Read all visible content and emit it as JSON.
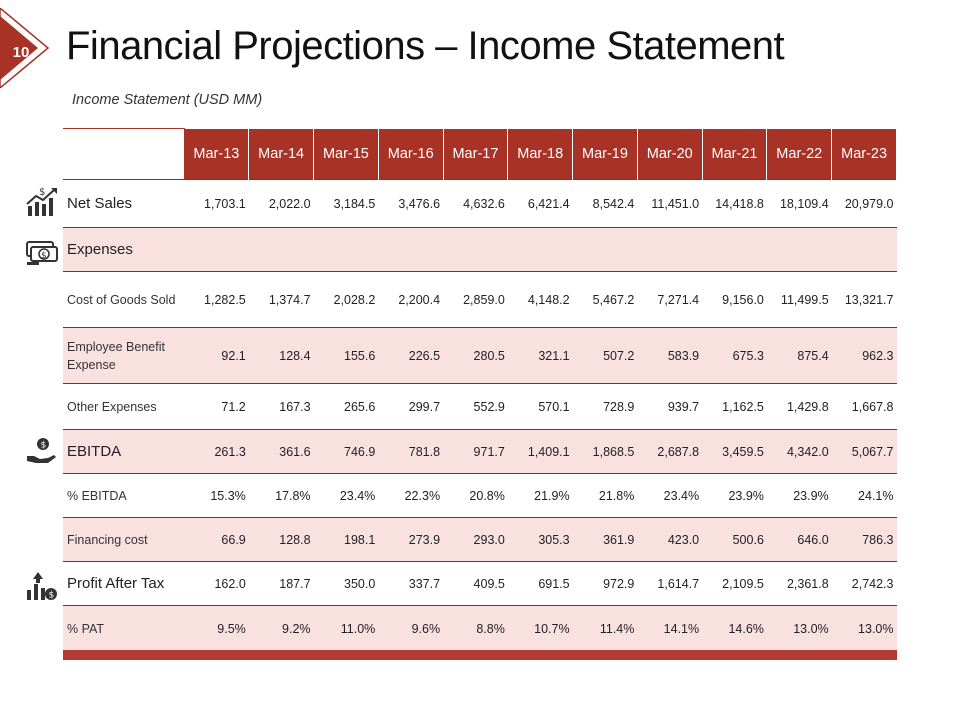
{
  "slide": {
    "number": "10",
    "title": "Financial Projections – Income Statement",
    "subtitle": "Income Statement (USD MM)"
  },
  "colors": {
    "accent": "#a93226",
    "row_shade": "#f9e1e0",
    "footer_bar": "#b23a32"
  },
  "table": {
    "columns": [
      "Mar-13",
      "Mar-14",
      "Mar-15",
      "Mar-16",
      "Mar-17",
      "Mar-18",
      "Mar-19",
      "Mar-20",
      "Mar-21",
      "Mar-22",
      "Mar-23"
    ],
    "rows": [
      {
        "label": "Net Sales",
        "icon": "sales-growth-icon",
        "values": [
          "1,703.1",
          "2,022.0",
          "3,184.5",
          "3,476.6",
          "4,632.6",
          "6,421.4",
          "8,542.4",
          "11,451.0",
          "14,418.8",
          "18,109.4",
          "20,979.0"
        ]
      },
      {
        "label": "Expenses",
        "icon": "money-stack-icon",
        "values": [
          "",
          "",
          "",
          "",
          "",
          "",
          "",
          "",
          "",
          "",
          ""
        ]
      },
      {
        "label": "Cost of Goods Sold",
        "values": [
          "1,282.5",
          "1,374.7",
          "2,028.2",
          "2,200.4",
          "2,859.0",
          "4,148.2",
          "5,467.2",
          "7,271.4",
          "9,156.0",
          "11,499.5",
          "13,321.7"
        ]
      },
      {
        "label": "Employee Benefit Expense",
        "values": [
          "92.1",
          "128.4",
          "155.6",
          "226.5",
          "280.5",
          "321.1",
          "507.2",
          "583.9",
          "675.3",
          "875.4",
          "962.3"
        ]
      },
      {
        "label": "Other Expenses",
        "values": [
          "71.2",
          "167.3",
          "265.6",
          "299.7",
          "552.9",
          "570.1",
          "728.9",
          "939.7",
          "1,162.5",
          "1,429.8",
          "1,667.8"
        ]
      },
      {
        "label": "EBITDA",
        "icon": "hand-coin-icon",
        "values": [
          "261.3",
          "361.6",
          "746.9",
          "781.8",
          "971.7",
          "1,409.1",
          "1,868.5",
          "2,687.8",
          "3,459.5",
          "4,342.0",
          "5,067.7"
        ]
      },
      {
        "label": "% EBITDA",
        "values": [
          "15.3%",
          "17.8%",
          "23.4%",
          "22.3%",
          "20.8%",
          "21.9%",
          "21.8%",
          "23.4%",
          "23.9%",
          "23.9%",
          "24.1%"
        ]
      },
      {
        "label": "Financing cost",
        "values": [
          "66.9",
          "128.8",
          "198.1",
          "273.9",
          "293.0",
          "305.3",
          "361.9",
          "423.0",
          "500.6",
          "646.0",
          "786.3"
        ]
      },
      {
        "label": "Profit After Tax",
        "icon": "profit-chart-icon",
        "values": [
          "162.0",
          "187.7",
          "350.0",
          "337.7",
          "409.5",
          "691.5",
          "972.9",
          "1,614.7",
          "2,109.5",
          "2,361.8",
          "2,742.3"
        ]
      },
      {
        "label": "% PAT",
        "values": [
          "9.5%",
          "9.2%",
          "11.0%",
          "9.6%",
          "8.8%",
          "10.7%",
          "11.4%",
          "14.1%",
          "14.6%",
          "13.0%",
          "13.0%"
        ]
      }
    ]
  }
}
